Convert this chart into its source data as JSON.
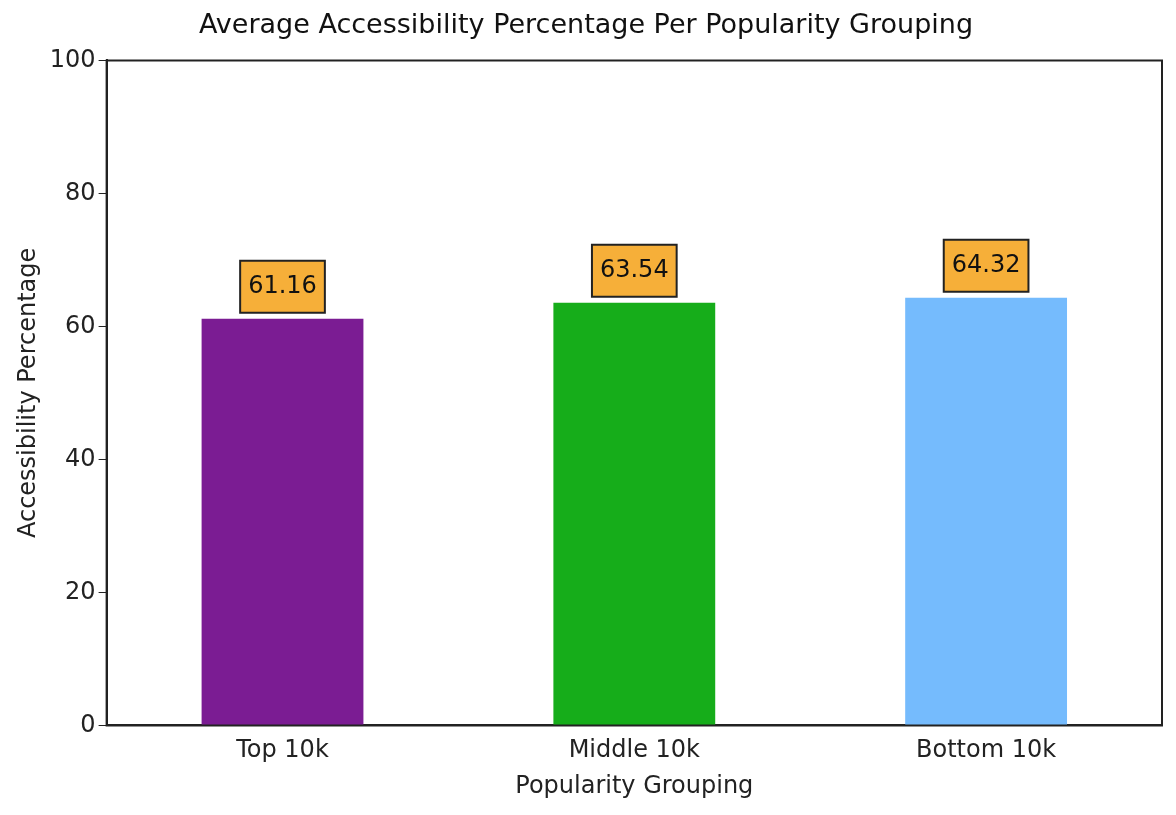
{
  "chart_data": {
    "type": "bar",
    "title": "Average Accessibility Percentage Per Popularity Grouping",
    "xlabel": "Popularity Grouping",
    "ylabel": "Accessibility Percentage",
    "categories": [
      "Top 10k",
      "Middle 10k",
      "Bottom 10k"
    ],
    "values": [
      61.16,
      63.54,
      64.32
    ],
    "colors": [
      "#7b1c93",
      "#16ad1a",
      "#75bbfd"
    ],
    "ylim": [
      0,
      100
    ],
    "yticks": [
      0,
      20,
      40,
      60,
      80,
      100
    ],
    "grid": false,
    "legend": false,
    "data_labels": true
  }
}
